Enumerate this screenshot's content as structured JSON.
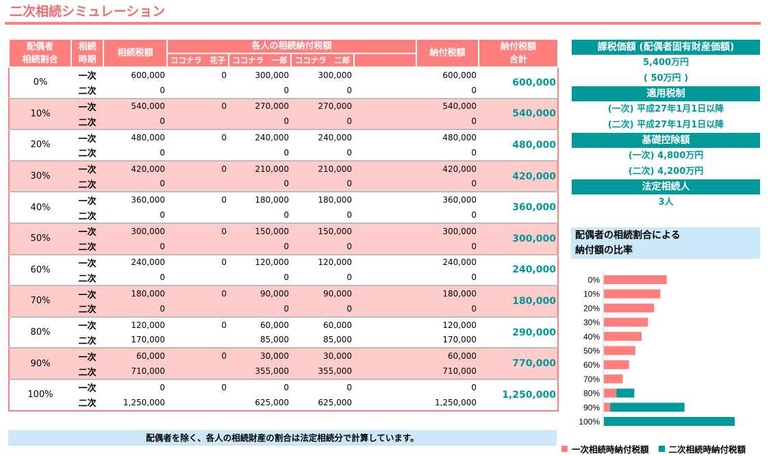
{
  "title": "二次相続シミュレーション",
  "table": {
    "headers": {
      "ratio": [
        "配偶者",
        "相続割合"
      ],
      "period": [
        "相続",
        "時期"
      ],
      "tax": "相続税額",
      "individual": "各人の相続納付税額",
      "heirs": [
        "ココナラ　花子",
        "ココナラ　一郎",
        "ココナラ　二郎",
        ""
      ],
      "paid": "納付税額",
      "total": [
        "納付税額",
        "合計"
      ]
    },
    "rows": [
      {
        "ratio": "0%",
        "first": {
          "period": "一次",
          "tax": "600,000",
          "h1": "0",
          "h2": "300,000",
          "h3": "300,000",
          "paid": "600,000"
        },
        "second": {
          "period": "二次",
          "tax": "0",
          "h2": "0",
          "h3": "0",
          "paid": "0"
        },
        "total": "600,000"
      },
      {
        "ratio": "10%",
        "first": {
          "period": "一次",
          "tax": "540,000",
          "h1": "0",
          "h2": "270,000",
          "h3": "270,000",
          "paid": "540,000"
        },
        "second": {
          "period": "二次",
          "tax": "0",
          "h2": "0",
          "h3": "0",
          "paid": "0"
        },
        "total": "540,000"
      },
      {
        "ratio": "20%",
        "first": {
          "period": "一次",
          "tax": "480,000",
          "h1": "0",
          "h2": "240,000",
          "h3": "240,000",
          "paid": "480,000"
        },
        "second": {
          "period": "二次",
          "tax": "0",
          "h2": "0",
          "h3": "0",
          "paid": "0"
        },
        "total": "480,000"
      },
      {
        "ratio": "30%",
        "first": {
          "period": "一次",
          "tax": "420,000",
          "h1": "0",
          "h2": "210,000",
          "h3": "210,000",
          "paid": "420,000"
        },
        "second": {
          "period": "二次",
          "tax": "0",
          "h2": "0",
          "h3": "0",
          "paid": "0"
        },
        "total": "420,000"
      },
      {
        "ratio": "40%",
        "first": {
          "period": "一次",
          "tax": "360,000",
          "h1": "0",
          "h2": "180,000",
          "h3": "180,000",
          "paid": "360,000"
        },
        "second": {
          "period": "二次",
          "tax": "0",
          "h2": "0",
          "h3": "0",
          "paid": "0"
        },
        "total": "360,000"
      },
      {
        "ratio": "50%",
        "first": {
          "period": "一次",
          "tax": "300,000",
          "h1": "0",
          "h2": "150,000",
          "h3": "150,000",
          "paid": "300,000"
        },
        "second": {
          "period": "二次",
          "tax": "0",
          "h2": "0",
          "h3": "0",
          "paid": "0"
        },
        "total": "300,000"
      },
      {
        "ratio": "60%",
        "first": {
          "period": "一次",
          "tax": "240,000",
          "h1": "0",
          "h2": "120,000",
          "h3": "120,000",
          "paid": "240,000"
        },
        "second": {
          "period": "二次",
          "tax": "0",
          "h2": "0",
          "h3": "0",
          "paid": "0"
        },
        "total": "240,000"
      },
      {
        "ratio": "70%",
        "first": {
          "period": "一次",
          "tax": "180,000",
          "h1": "0",
          "h2": "90,000",
          "h3": "90,000",
          "paid": "180,000"
        },
        "second": {
          "period": "二次",
          "tax": "0",
          "h2": "0",
          "h3": "0",
          "paid": "0"
        },
        "total": "180,000"
      },
      {
        "ratio": "80%",
        "first": {
          "period": "一次",
          "tax": "120,000",
          "h1": "0",
          "h2": "60,000",
          "h3": "60,000",
          "paid": "120,000"
        },
        "second": {
          "period": "二次",
          "tax": "170,000",
          "h2": "85,000",
          "h3": "85,000",
          "paid": "170,000"
        },
        "total": "290,000"
      },
      {
        "ratio": "90%",
        "first": {
          "period": "一次",
          "tax": "60,000",
          "h1": "0",
          "h2": "30,000",
          "h3": "30,000",
          "paid": "60,000"
        },
        "second": {
          "period": "二次",
          "tax": "710,000",
          "h2": "355,000",
          "h3": "355,000",
          "paid": "710,000"
        },
        "total": "770,000"
      },
      {
        "ratio": "100%",
        "first": {
          "period": "一次",
          "tax": "0",
          "h1": "0",
          "h2": "0",
          "h3": "0",
          "paid": "0"
        },
        "second": {
          "period": "二次",
          "tax": "1,250,000",
          "h2": "625,000",
          "h3": "625,000",
          "paid": "1,250,000"
        },
        "total": "1,250,000"
      }
    ]
  },
  "note": "配偶者を除く、各人の相続財産の割合は法定相続分で計算しています。",
  "side": {
    "taxable_label": "課税価額 (配偶者固有財産価額)",
    "taxable_value": "5,400万円",
    "taxable_spouse": "( 50万円 )",
    "system_label": "適用税制",
    "system_first": "(一次) 平成27年1月1日以降",
    "system_second": "(二次) 平成27年1月1日以降",
    "deduction_label": "基礎控除額",
    "deduction_first": "(一次) 4,800万円",
    "deduction_second": "(二次) 4,200万円",
    "heirs_label": "法定相続人",
    "heirs_value": "3人"
  },
  "chart_data": {
    "type": "bar",
    "orientation": "horizontal",
    "stacked": true,
    "title": "配偶者の相続割合による納付額の比率",
    "title_lines": [
      "配偶者の相続割合による",
      "納付額の比率"
    ],
    "categories": [
      "0%",
      "10%",
      "20%",
      "30%",
      "40%",
      "50%",
      "60%",
      "70%",
      "80%",
      "90%",
      "100%"
    ],
    "series": [
      {
        "name": "一次相続時納付税額",
        "color": "#ff7f7f",
        "values": [
          600000,
          540000,
          480000,
          420000,
          360000,
          300000,
          240000,
          180000,
          120000,
          60000,
          0
        ]
      },
      {
        "name": "二次相続時納付税額",
        "color": "#009999",
        "values": [
          0,
          0,
          0,
          0,
          0,
          0,
          0,
          0,
          170000,
          710000,
          1250000
        ]
      }
    ],
    "xlim": [
      0,
      1250000
    ],
    "legend": "bottom"
  }
}
